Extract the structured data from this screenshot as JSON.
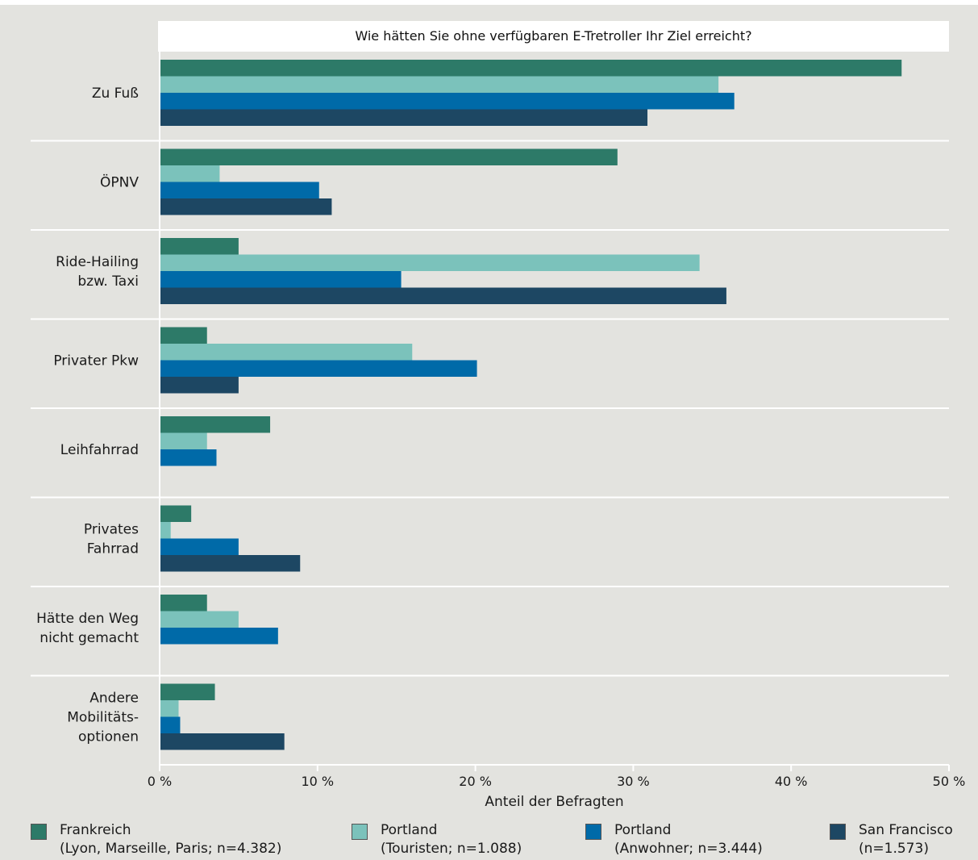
{
  "chart_data": {
    "type": "bar",
    "orientation": "horizontal",
    "title": "Wie hätten Sie ohne verfügbaren E-Tretroller Ihr Ziel erreicht?",
    "xlabel": "Anteil der Befragten",
    "xlim": [
      0,
      50
    ],
    "xticks": [
      "0 %",
      "10 %",
      "20 %",
      "30 %",
      "40 %",
      "50 %"
    ],
    "categories": [
      [
        "Zu Fuß"
      ],
      [
        "ÖPNV"
      ],
      [
        "Ride-Hailing",
        "bzw. Taxi"
      ],
      [
        "Privater Pkw"
      ],
      [
        "Leihfahrrad"
      ],
      [
        "Privates",
        "Fahrrad"
      ],
      [
        "Hätte den Weg",
        "nicht gemacht"
      ],
      [
        "Andere",
        "Mobilitäts-",
        "optionen"
      ]
    ],
    "series": [
      {
        "legend": [
          "Frankreich",
          "(Lyon, Marseille, Paris; n=4.382)"
        ],
        "color": "#2d7a68",
        "values": [
          47,
          29,
          5,
          3,
          7,
          2,
          3,
          3.5
        ]
      },
      {
        "legend": [
          "Portland",
          "(Touristen; n=1.088)"
        ],
        "color": "#7bc2bb",
        "values": [
          35.4,
          3.8,
          34.2,
          16,
          3,
          0.7,
          5,
          1.2
        ]
      },
      {
        "legend": [
          "Portland",
          "(Anwohner; n=3.444)"
        ],
        "color": "#006aa8",
        "values": [
          36.4,
          10.1,
          15.3,
          20.1,
          3.6,
          5,
          7.5,
          1.3
        ]
      },
      {
        "legend": [
          "San Francisco",
          "(n=1.573)"
        ],
        "color": "#1d4763",
        "values": [
          30.9,
          10.9,
          35.9,
          5,
          null,
          8.9,
          null,
          7.9
        ]
      }
    ],
    "grid": "horizontal separators",
    "legend_position": "bottom"
  }
}
